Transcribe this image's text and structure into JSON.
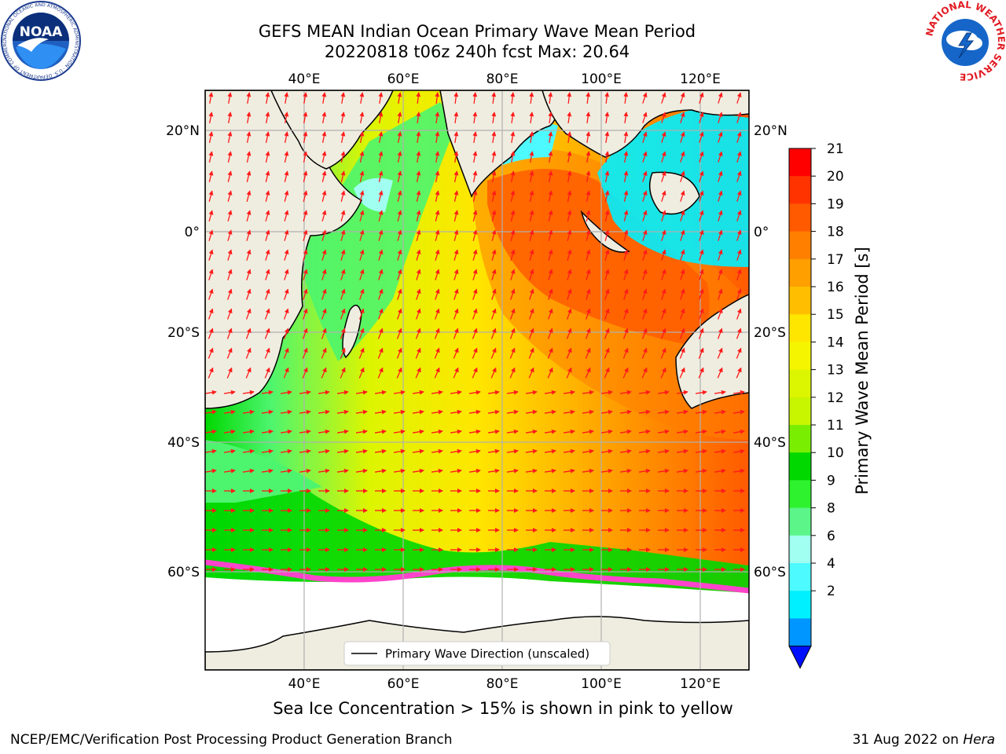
{
  "title": {
    "line1": "GEFS MEAN Indian Ocean Primary Wave Mean Period",
    "line2": "20220818 t06z 240h fcst   Max: 20.64"
  },
  "map": {
    "lon_ticks": [
      "40°E",
      "60°E",
      "80°E",
      "100°E",
      "120°E"
    ],
    "lat_ticks": [
      "20°N",
      "0°",
      "20°S",
      "40°S",
      "60°S"
    ],
    "extent": {
      "lon": [
        20,
        130
      ],
      "lat": [
        -73,
        26
      ]
    },
    "legend_label": "Primary Wave Direction (unscaled)",
    "arrow_color": "#ff1a1a",
    "land_color": "#efede0"
  },
  "colorbar": {
    "label": "Primary Wave Mean Period [s]",
    "ticks": [
      "21",
      "20",
      "19",
      "18",
      "17",
      "16",
      "15",
      "14",
      "13",
      "12",
      "11",
      "10",
      "9",
      "8",
      "6",
      "4",
      "2"
    ],
    "colors": [
      "#ff0000",
      "#ff3300",
      "#ff5a00",
      "#ff8000",
      "#ff9f00",
      "#ffbf00",
      "#ffe600",
      "#f5f500",
      "#dcf500",
      "#c8f500",
      "#7aee00",
      "#00d800",
      "#2ef22e",
      "#5cf58a",
      "#a0fff0",
      "#4dfaff",
      "#00f0ff",
      "#0096ff"
    ],
    "under_color": "#0010ff"
  },
  "footer": {
    "ice_note": "Sea Ice Concentration > 15% is shown in pink to yellow",
    "credit": "NCEP/EMC/Verification Post Processing Product Generation Branch",
    "run_date": "31 Aug 2022 on",
    "host": "Hera"
  },
  "logos": {
    "left": "NOAA",
    "left_ring": "NATIONAL OCEANIC AND ATMOSPHERIC ADMINISTRATION · U.S. DEPARTMENT OF COMMERCE",
    "right_ring": "NATIONAL WEATHER SERVICE"
  }
}
